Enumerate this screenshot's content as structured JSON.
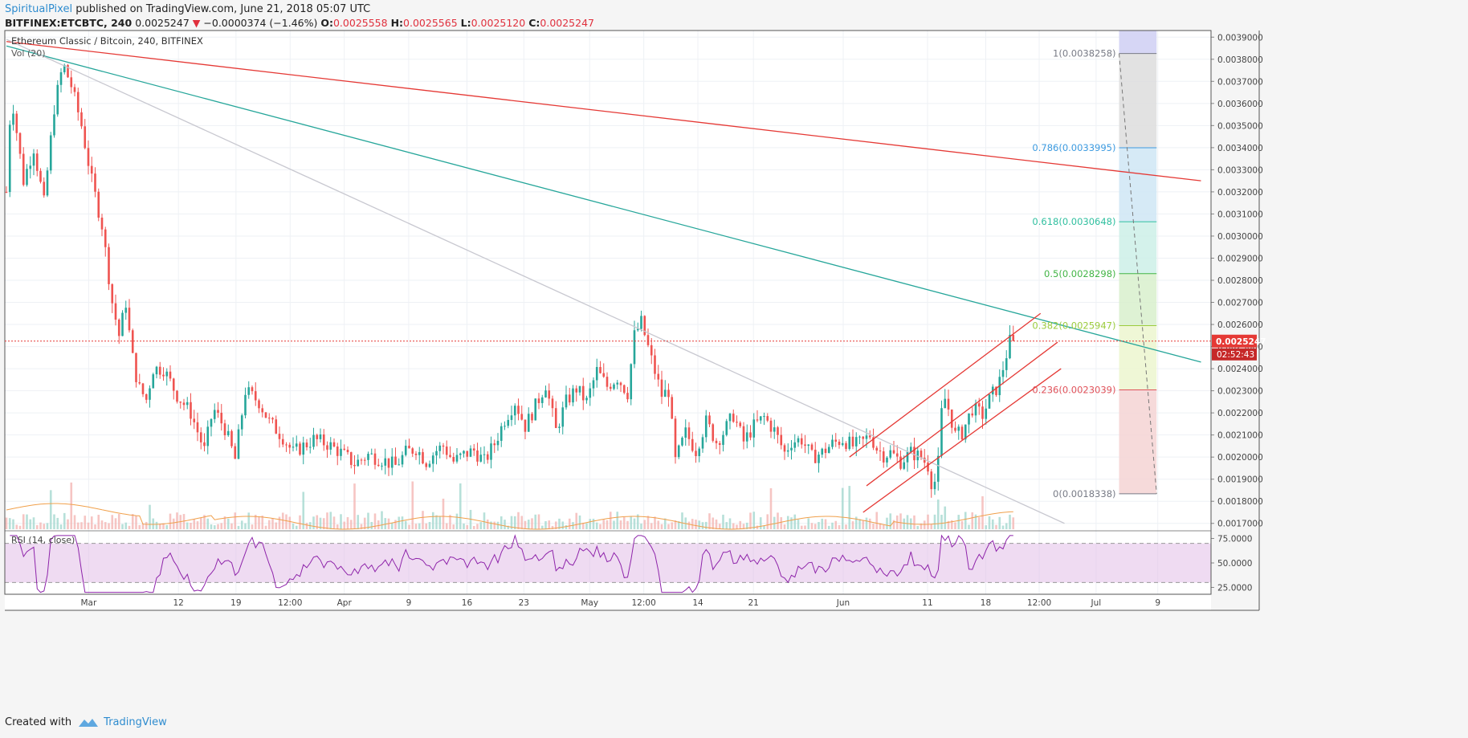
{
  "header": {
    "publisher": "SpiritualPixel",
    "published_text": "published on TradingView.com, June 21, 2018 05:07 UTC",
    "symbol": "BITFINEX:ETCBTC, 240",
    "last": "0.0025247",
    "arrow": "▼",
    "change": "−0.0000374 (−1.46%)",
    "o_label": "O:",
    "o_value": "0.0025558",
    "h_label": "H:",
    "h_value": "0.0025565",
    "l_label": "L:",
    "l_value": "0.0025120",
    "c_label": "C:",
    "c_value": "0.0025247"
  },
  "footer": {
    "created_with": "Created with",
    "brand": "TradingView"
  },
  "colors": {
    "up": "#26a69a",
    "down": "#ef5350",
    "rsi": "#8e24aa",
    "fib_band": "#e1bee7"
  },
  "chart_data": [
    {
      "type": "candlestick",
      "title": "Ethereum Classic / Bitcoin, 240, BITFINEX",
      "volume_label": "Vol (20)",
      "ylim": [
        0.00167,
        0.00393
      ],
      "y_ticks": [
        "0.0017000",
        "0.0018000",
        "0.0019000",
        "0.0020000",
        "0.0021000",
        "0.0022000",
        "0.0023000",
        "0.0024000",
        "0.0025000",
        "0.0026000",
        "0.0027000",
        "0.0028000",
        "0.0029000",
        "0.0030000",
        "0.0031000",
        "0.0032000",
        "0.0033000",
        "0.0034000",
        "0.0035000",
        "0.0036000",
        "0.0037000",
        "0.0038000",
        "0.0039000"
      ],
      "x_ticks": [
        "Mar",
        "12",
        "19",
        "12:00",
        "Apr",
        "9",
        "16",
        "23",
        "May",
        "12:00",
        "14",
        "21",
        "Jun",
        "11",
        "18",
        "12:00",
        "Jul",
        "9"
      ],
      "last_price": "0.0025247",
      "countdown": "02:52:43",
      "close_path": [
        {
          "t": 0,
          "p": 0.0032
        },
        {
          "t": 0.7,
          "p": 0.00365
        },
        {
          "t": 2.5,
          "p": 0.00325
        },
        {
          "t": 4,
          "p": 0.0034
        },
        {
          "t": 5.5,
          "p": 0.00315
        },
        {
          "t": 7,
          "p": 0.00358
        },
        {
          "t": 8.3,
          "p": 0.00378
        },
        {
          "t": 9.5,
          "p": 0.00368
        },
        {
          "t": 11,
          "p": 0.0035
        },
        {
          "t": 12.5,
          "p": 0.00325
        },
        {
          "t": 14,
          "p": 0.00305
        },
        {
          "t": 15.5,
          "p": 0.0027
        },
        {
          "t": 16.5,
          "p": 0.00255
        },
        {
          "t": 17.5,
          "p": 0.0027
        },
        {
          "t": 18.3,
          "p": 0.00248
        },
        {
          "t": 19.3,
          "p": 0.00232
        },
        {
          "t": 20.5,
          "p": 0.00226
        },
        {
          "t": 21.5,
          "p": 0.0024
        },
        {
          "t": 23,
          "p": 0.0024
        },
        {
          "t": 25,
          "p": 0.00228
        },
        {
          "t": 27,
          "p": 0.0022
        },
        {
          "t": 29,
          "p": 0.00203
        },
        {
          "t": 30.3,
          "p": 0.00222
        },
        {
          "t": 32,
          "p": 0.00213
        },
        {
          "t": 33.5,
          "p": 0.00199
        },
        {
          "t": 35,
          "p": 0.0023
        },
        {
          "t": 37,
          "p": 0.00225
        },
        {
          "t": 38.5,
          "p": 0.00216
        },
        {
          "t": 40.5,
          "p": 0.00209
        },
        {
          "t": 42,
          "p": 0.00202
        },
        {
          "t": 43.5,
          "p": 0.00205
        },
        {
          "t": 45,
          "p": 0.00208
        },
        {
          "t": 47,
          "p": 0.00206
        },
        {
          "t": 49,
          "p": 0.00202
        },
        {
          "t": 51,
          "p": 0.00197
        },
        {
          "t": 53,
          "p": 0.00201
        },
        {
          "t": 55,
          "p": 0.00199
        },
        {
          "t": 57,
          "p": 0.00196
        },
        {
          "t": 58.5,
          "p": 0.00202
        },
        {
          "t": 60,
          "p": 0.00204
        },
        {
          "t": 61.5,
          "p": 0.00198
        },
        {
          "t": 63,
          "p": 0.00203
        },
        {
          "t": 64,
          "p": 0.00205
        },
        {
          "t": 65.5,
          "p": 0.00198
        },
        {
          "t": 67,
          "p": 0.00201
        },
        {
          "t": 68.5,
          "p": 0.00203
        },
        {
          "t": 70,
          "p": 0.00198
        },
        {
          "t": 71.5,
          "p": 0.00206
        },
        {
          "t": 73,
          "p": 0.00217
        },
        {
          "t": 74.5,
          "p": 0.00225
        },
        {
          "t": 76,
          "p": 0.00214
        },
        {
          "t": 77.5,
          "p": 0.00223
        },
        {
          "t": 79,
          "p": 0.00233
        },
        {
          "t": 80.5,
          "p": 0.00212
        },
        {
          "t": 82,
          "p": 0.00225
        },
        {
          "t": 83.5,
          "p": 0.00231
        },
        {
          "t": 85,
          "p": 0.00225
        },
        {
          "t": 86.5,
          "p": 0.00239
        },
        {
          "t": 88,
          "p": 0.00232
        },
        {
          "t": 89.5,
          "p": 0.00236
        },
        {
          "t": 91,
          "p": 0.00229
        },
        {
          "t": 92,
          "p": 0.00255
        },
        {
          "t": 93,
          "p": 0.00261
        },
        {
          "t": 94.5,
          "p": 0.00244
        },
        {
          "t": 96,
          "p": 0.00228
        },
        {
          "t": 97,
          "p": 0.0023
        },
        {
          "t": 98,
          "p": 0.00198
        },
        {
          "t": 99.5,
          "p": 0.00211
        },
        {
          "t": 101,
          "p": 0.00203
        },
        {
          "t": 102.5,
          "p": 0.00216
        },
        {
          "t": 104,
          "p": 0.00207
        },
        {
          "t": 105,
          "p": 0.00211
        },
        {
          "t": 106.5,
          "p": 0.00219
        },
        {
          "t": 108,
          "p": 0.00207
        },
        {
          "t": 109.5,
          "p": 0.00214
        },
        {
          "t": 111,
          "p": 0.00218
        },
        {
          "t": 112.5,
          "p": 0.00212
        },
        {
          "t": 114,
          "p": 0.00202
        },
        {
          "t": 115,
          "p": 0.00207
        },
        {
          "t": 116.5,
          "p": 0.00208
        },
        {
          "t": 118,
          "p": 0.002
        },
        {
          "t": 119.5,
          "p": 0.00202
        },
        {
          "t": 121,
          "p": 0.00206
        },
        {
          "t": 122.5,
          "p": 0.00208
        },
        {
          "t": 124,
          "p": 0.00205
        },
        {
          "t": 125.5,
          "p": 0.00207
        },
        {
          "t": 126.5,
          "p": 0.0021
        },
        {
          "t": 127.5,
          "p": 0.00204
        },
        {
          "t": 128.5,
          "p": 0.00201
        },
        {
          "t": 129.5,
          "p": 0.00202
        },
        {
          "t": 131,
          "p": 0.00198
        },
        {
          "t": 132.5,
          "p": 0.00202
        },
        {
          "t": 134,
          "p": 0.002
        },
        {
          "t": 135,
          "p": 0.00196
        },
        {
          "t": 135.7,
          "p": 0.00186
        },
        {
          "t": 136.4,
          "p": 0.00193
        },
        {
          "t": 137.2,
          "p": 0.00229
        },
        {
          "t": 138.2,
          "p": 0.0022
        },
        {
          "t": 139,
          "p": 0.0021
        },
        {
          "t": 140,
          "p": 0.00211
        },
        {
          "t": 141.5,
          "p": 0.00222
        },
        {
          "t": 143,
          "p": 0.00219
        },
        {
          "t": 144.3,
          "p": 0.00228
        },
        {
          "t": 145.3,
          "p": 0.00232
        },
        {
          "t": 146.3,
          "p": 0.00244
        },
        {
          "t": 147.3,
          "p": 0.00256
        },
        {
          "t": 147.8,
          "p": 0.00252
        }
      ],
      "rsi": {
        "label": "RSI (14, close)",
        "ylim": [
          18,
          82
        ],
        "ticks": [
          "75.0000",
          "50.0000",
          "25.0000"
        ],
        "bands": [
          70,
          30
        ]
      },
      "trendlines": [
        {
          "color": "#e53935",
          "from": [
            0,
            0.00388
          ],
          "to": [
            175,
            0.00325
          ]
        },
        {
          "color": "#26a69a",
          "from": [
            0,
            0.00386
          ],
          "to": [
            175,
            0.00243
          ]
        },
        {
          "color": "#c8c8d0",
          "from": [
            0,
            0.00389
          ],
          "to": [
            155,
            0.0017
          ]
        }
      ],
      "channel": [
        {
          "from": [
            123.5,
            0.002
          ],
          "to": [
            151.5,
            0.00265
          ]
        },
        {
          "from": [
            126,
            0.00187
          ],
          "to": [
            154,
            0.00252
          ]
        },
        {
          "from": [
            125.5,
            0.00175
          ],
          "to": [
            154.5,
            0.0024
          ]
        }
      ],
      "fib": {
        "x_range": [
          163,
          168.5
        ],
        "trend_from": [
          163,
          0.0038258
        ],
        "trend_to": [
          168.5,
          0.0018338
        ],
        "levels": [
          {
            "ratio": 1,
            "price": 0.0038258,
            "label": "1(0.0038258)",
            "color": "#787b86",
            "fill": "#dddddd"
          },
          {
            "ratio": 0.786,
            "price": 0.0033995,
            "label": "0.786(0.0033995)",
            "color": "#3d9be0",
            "fill": "#cfe6f5"
          },
          {
            "ratio": 0.618,
            "price": 0.0030648,
            "label": "0.618(0.0030648)",
            "color": "#2fbf9f",
            "fill": "#cdf0e8"
          },
          {
            "ratio": 0.5,
            "price": 0.0028298,
            "label": "0.5(0.0028298)",
            "color": "#43b546",
            "fill": "#d8f0cc"
          },
          {
            "ratio": 0.382,
            "price": 0.0025947,
            "label": "0.382(0.0025947)",
            "color": "#9ccc3d",
            "fill": "#ecf6cf"
          },
          {
            "ratio": 0.236,
            "price": 0.0023039,
            "label": "0.236(0.0023039)",
            "color": "#e0525a",
            "fill": "#f4d4d4"
          },
          {
            "ratio": 0,
            "price": 0.0018338,
            "label": "0(0.0018338)",
            "color": "#787b86",
            "fill": null
          }
        ],
        "top_extension_fill": "#d6d6f5"
      }
    }
  ]
}
